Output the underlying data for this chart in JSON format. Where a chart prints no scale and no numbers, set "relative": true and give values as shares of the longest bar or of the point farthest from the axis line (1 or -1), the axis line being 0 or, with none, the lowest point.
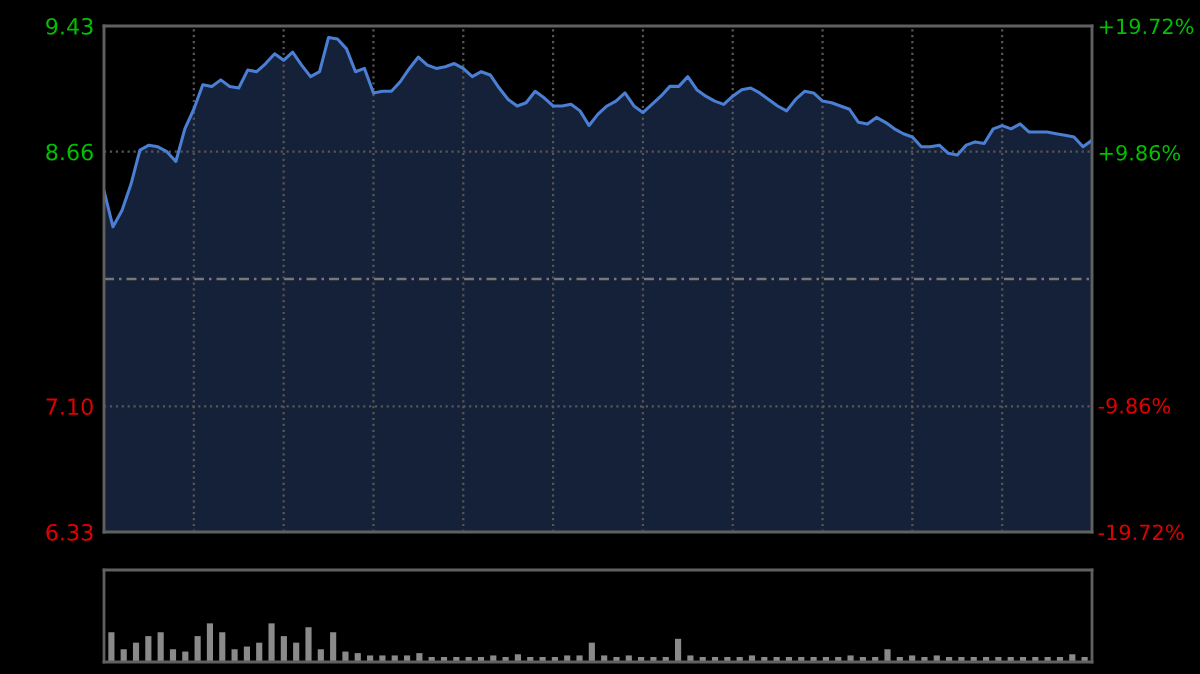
{
  "chart_data": [
    {
      "type": "area",
      "categories": [
        null,
        null,
        null,
        null,
        null,
        null,
        null,
        null,
        null,
        null,
        null,
        null,
        null,
        null,
        null,
        null,
        null,
        null,
        null,
        null,
        null,
        null,
        null,
        null,
        null,
        null,
        null,
        null,
        null,
        null,
        null,
        null,
        null,
        null,
        null,
        null,
        null,
        null,
        null,
        null,
        null,
        null,
        null,
        null,
        null,
        null,
        null,
        null,
        null,
        null,
        null,
        null,
        null,
        null,
        null,
        null,
        null,
        null,
        null,
        null,
        null,
        null,
        null,
        null,
        null,
        null,
        null,
        null,
        null,
        null,
        null,
        null,
        null,
        null,
        null,
        null,
        null,
        null,
        null,
        null,
        null,
        null,
        null,
        null,
        null,
        null,
        null,
        null,
        null,
        null,
        null,
        null,
        null,
        null,
        null,
        null,
        null,
        null,
        null,
        null,
        null,
        null,
        null,
        null,
        null,
        null,
        null,
        null,
        null,
        null,
        null
      ],
      "series": [
        {
          "color": "#4a7fd4",
          "values": [
            8.42,
            8.2,
            8.3,
            8.46,
            8.67,
            8.7,
            8.69,
            8.66,
            8.6,
            8.8,
            8.92,
            9.07,
            9.06,
            9.1,
            9.06,
            9.05,
            9.16,
            9.15,
            9.2,
            9.26,
            9.22,
            9.27,
            9.19,
            9.12,
            9.15,
            9.36,
            9.35,
            9.29,
            9.15,
            9.17,
            9.02,
            9.03,
            9.03,
            9.09,
            9.17,
            9.24,
            9.19,
            9.17,
            9.18,
            9.2,
            9.17,
            9.12,
            9.15,
            9.13,
            9.05,
            8.98,
            8.94,
            8.96,
            9.03,
            8.99,
            8.94,
            8.94,
            8.95,
            8.91,
            8.82,
            8.89,
            8.94,
            8.97,
            9.02,
            8.94,
            8.9,
            8.95,
            9.0,
            9.06,
            9.06,
            9.12,
            9.04,
            9.0,
            8.97,
            8.95,
            9.0,
            9.04,
            9.05,
            9.02,
            8.98,
            8.94,
            8.91,
            8.98,
            9.03,
            9.02,
            8.97,
            8.96,
            8.94,
            8.92,
            8.84,
            8.83,
            8.87,
            8.84,
            8.8,
            8.77,
            8.75,
            8.69,
            8.69,
            8.7,
            8.65,
            8.64,
            8.7,
            8.72,
            8.71,
            8.8,
            8.82,
            8.8,
            8.83,
            8.78,
            8.78,
            8.78,
            8.77,
            8.76,
            8.75,
            8.69,
            8.73
          ]
        }
      ],
      "ylim": [
        6.33,
        9.43
      ],
      "yticks": [
        {
          "value": 6.33,
          "label": "6.33"
        },
        {
          "value": 7.1,
          "label": "7.10"
        },
        {
          "value": 8.66,
          "label": "8.66"
        },
        {
          "value": 9.43,
          "label": "9.43"
        }
      ],
      "y2lim": [
        -19.72,
        19.72
      ],
      "y2ticks": [
        {
          "value": -19.72,
          "label": "-19.72%"
        },
        {
          "value": -9.86,
          "label": "-9.86%"
        },
        {
          "value": 9.86,
          "label": "+9.86%"
        },
        {
          "value": 19.72,
          "label": "+19.72%"
        }
      ],
      "ref_lines": [
        {
          "axis": "y",
          "value": 7.88,
          "label": null,
          "color": "#777777",
          "line_style": "dashed"
        }
      ],
      "grid": true,
      "legend": false,
      "tick_labels": "y"
    },
    {
      "type": "bar",
      "relative": true,
      "color": "#8a8a8a",
      "categories": [
        null,
        null,
        null,
        null,
        null,
        null,
        null,
        null,
        null,
        null,
        null,
        null,
        null,
        null,
        null,
        null,
        null,
        null,
        null,
        null,
        null,
        null,
        null,
        null,
        null,
        null,
        null,
        null,
        null,
        null,
        null,
        null,
        null,
        null,
        null,
        null,
        null,
        null,
        null,
        null,
        null,
        null,
        null,
        null,
        null,
        null,
        null,
        null,
        null,
        null,
        null,
        null,
        null,
        null,
        null,
        null,
        null,
        null,
        null,
        null,
        null,
        null,
        null,
        null,
        null,
        null,
        null,
        null,
        null,
        null,
        null,
        null,
        null,
        null,
        null,
        null,
        null,
        null,
        null,
        null
      ],
      "values": [
        0.77,
        0.33,
        0.5,
        0.67,
        0.77,
        0.33,
        0.27,
        0.67,
        1,
        0.77,
        0.33,
        0.4,
        0.5,
        1,
        0.67,
        0.5,
        0.9,
        0.33,
        0.77,
        0.27,
        0.23,
        0.17,
        0.17,
        0.17,
        0.17,
        0.23,
        0.13,
        0.13,
        0.13,
        0.13,
        0.13,
        0.17,
        0.13,
        0.2,
        0.13,
        0.13,
        0.13,
        0.17,
        0.17,
        0.5,
        0.17,
        0.13,
        0.17,
        0.13,
        0.13,
        0.13,
        0.6,
        0.17,
        0.13,
        0.13,
        0.13,
        0.13,
        0.17,
        0.13,
        0.13,
        0.13,
        0.13,
        0.13,
        0.13,
        0.13,
        0.17,
        0.13,
        0.13,
        0.33,
        0.13,
        0.17,
        0.13,
        0.17,
        0.13,
        0.13,
        0.13,
        0.13,
        0.13,
        0.13,
        0.13,
        0.13,
        0.13,
        0.13,
        0.2,
        0.13
      ],
      "grid": false,
      "tick_labels": false
    }
  ]
}
